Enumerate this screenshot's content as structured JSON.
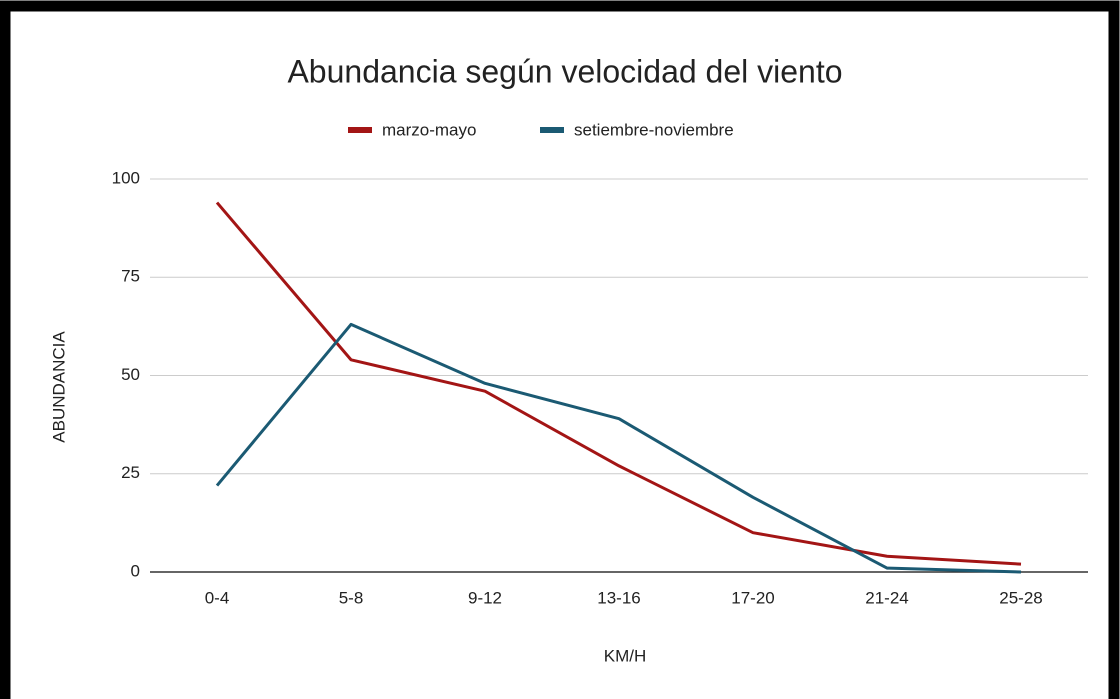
{
  "chart_data": {
    "type": "line",
    "title": "Abundancia según velocidad del viento",
    "x_label": "KM/H",
    "y_label": "ABUNDANCIA",
    "categories": [
      "0-4",
      "5-8",
      "9-12",
      "13-16",
      "17-20",
      "21-24",
      "25-28"
    ],
    "series": [
      {
        "name": "marzo-mayo",
        "color": "#a31515",
        "values": [
          94,
          54,
          46,
          27,
          10,
          4,
          2
        ]
      },
      {
        "name": "setiembre-noviembre",
        "color": "#1b5a73",
        "values": [
          22,
          63,
          48,
          39,
          19,
          1,
          0
        ]
      }
    ],
    "ylim": [
      0,
      100
    ],
    "yticks": [
      0,
      25,
      50,
      75,
      100
    ],
    "grid": true,
    "legend": "top"
  }
}
